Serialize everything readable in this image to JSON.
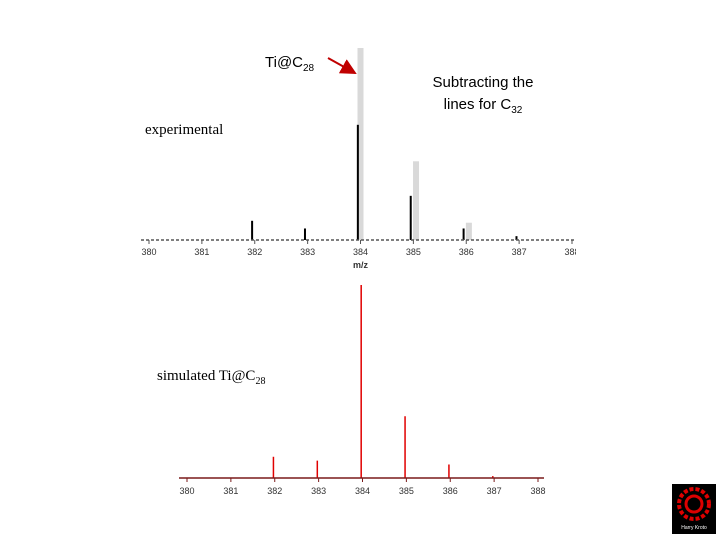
{
  "label": {
    "text": "Ti@C",
    "sub": "28"
  },
  "note": {
    "lines": [
      "Subtracting the",
      "lines for C"
    ],
    "sub": "32"
  },
  "logo": "Harry Kroto",
  "chart_data": [
    {
      "type": "bar",
      "annotation": {
        "text": "experimental"
      },
      "xlabel": "m/z",
      "xlim": [
        380,
        388
      ],
      "xticks": [
        380,
        381,
        382,
        383,
        384,
        385,
        386,
        387,
        388
      ],
      "ylim": [
        0,
        100
      ],
      "series": [
        {
          "color": "#d9d9d9",
          "x": [
            384.0,
            385.05,
            386.05
          ],
          "values": [
            100,
            41,
            9
          ]
        },
        {
          "color": "#000000",
          "x": [
            381.95,
            382.95,
            383.95,
            384.95,
            385.95,
            386.95
          ],
          "values": [
            10,
            6,
            60,
            23,
            6,
            2
          ]
        }
      ]
    },
    {
      "type": "bar",
      "annotation": {
        "text": "simulated Ti@C",
        "sub": "28"
      },
      "xlim": [
        380,
        388
      ],
      "xticks": [
        380,
        381,
        382,
        383,
        384,
        385,
        386,
        387,
        388
      ],
      "ylim": [
        0,
        100
      ],
      "series": [
        {
          "color": "#e00000",
          "x": [
            381.97,
            382.97,
            383.97,
            384.97,
            385.97,
            386.97
          ],
          "values": [
            11,
            9,
            100,
            32,
            7,
            1
          ]
        }
      ]
    }
  ]
}
